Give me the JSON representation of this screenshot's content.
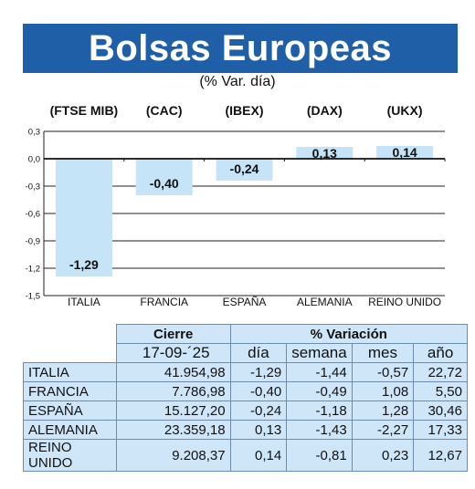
{
  "header": {
    "title": "Bolsas Europeas",
    "subtitle": "(% Var. día)"
  },
  "chart_data": {
    "type": "bar",
    "title": "Bolsas Europeas",
    "subtitle": "(% Var. día)",
    "categories": [
      "ITALIA",
      "FRANCIA",
      "ESPAÑA",
      "ALEMANIA",
      "REINO UNIDO"
    ],
    "index_labels": [
      "(FTSE MIB)",
      "(CAC)",
      "(IBEX)",
      "(DAX)",
      "(UKX)"
    ],
    "values": [
      -1.29,
      -0.4,
      -0.24,
      0.13,
      0.14
    ],
    "value_labels": [
      "-1,29",
      "-0,40",
      "-0,24",
      "0,13",
      "0,14"
    ],
    "ylim": [
      -1.5,
      0.3
    ],
    "yticks": [
      0.3,
      0.0,
      -0.3,
      -0.6,
      -0.9,
      -1.2,
      -1.5
    ],
    "ytick_labels": [
      "0,3",
      "0,0",
      "-0,3",
      "-0,6",
      "-0,9",
      "-1,2",
      "-1,5"
    ],
    "grid": true,
    "bar_color": "#c6e4f7"
  },
  "table": {
    "group_headers": {
      "cierre": "Cierre",
      "variacion": "% Variación"
    },
    "date": "17-09-´25",
    "columns": [
      "día",
      "semana",
      "mes",
      "año"
    ],
    "rows": [
      {
        "name": "ITALIA",
        "cierre": "41.954,98",
        "dia": "-1,29",
        "semana": "-1,44",
        "mes": "-0,57",
        "ano": "22,72"
      },
      {
        "name": "FRANCIA",
        "cierre": "7.786,98",
        "dia": "-0,40",
        "semana": "-0,49",
        "mes": "1,08",
        "ano": "5,50"
      },
      {
        "name": "ESPAÑA",
        "cierre": "15.127,20",
        "dia": "-0,24",
        "semana": "-1,18",
        "mes": "1,28",
        "ano": "30,46"
      },
      {
        "name": "ALEMANIA",
        "cierre": "23.359,18",
        "dia": "0,13",
        "semana": "-1,43",
        "mes": "-2,27",
        "ano": "17,33"
      },
      {
        "name": "REINO UNIDO",
        "cierre": "9.208,37",
        "dia": "0,14",
        "semana": "-0,81",
        "mes": "0,23",
        "ano": "12,67"
      }
    ]
  }
}
